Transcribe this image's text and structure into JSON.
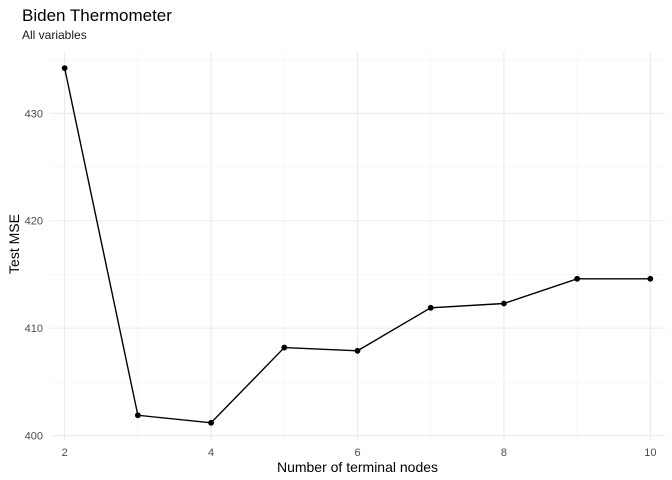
{
  "chart_data": {
    "type": "line",
    "title": "Biden Thermometer",
    "subtitle": "All variables",
    "xlabel": "Number of terminal nodes",
    "ylabel": "Test MSE",
    "x": [
      2,
      3,
      4,
      5,
      6,
      7,
      8,
      9,
      10
    ],
    "series": [
      {
        "values": [
          434.2,
          401.9,
          401.2,
          408.2,
          407.9,
          411.9,
          412.3,
          414.6,
          414.6
        ]
      }
    ],
    "xlim": [
      1.8,
      10.2
    ],
    "ylim": [
      399.6,
      435.7
    ],
    "x_ticks": [
      2,
      4,
      6,
      8,
      10
    ],
    "y_ticks": [
      400,
      410,
      420,
      430
    ],
    "grid": true,
    "color": "#000000"
  }
}
